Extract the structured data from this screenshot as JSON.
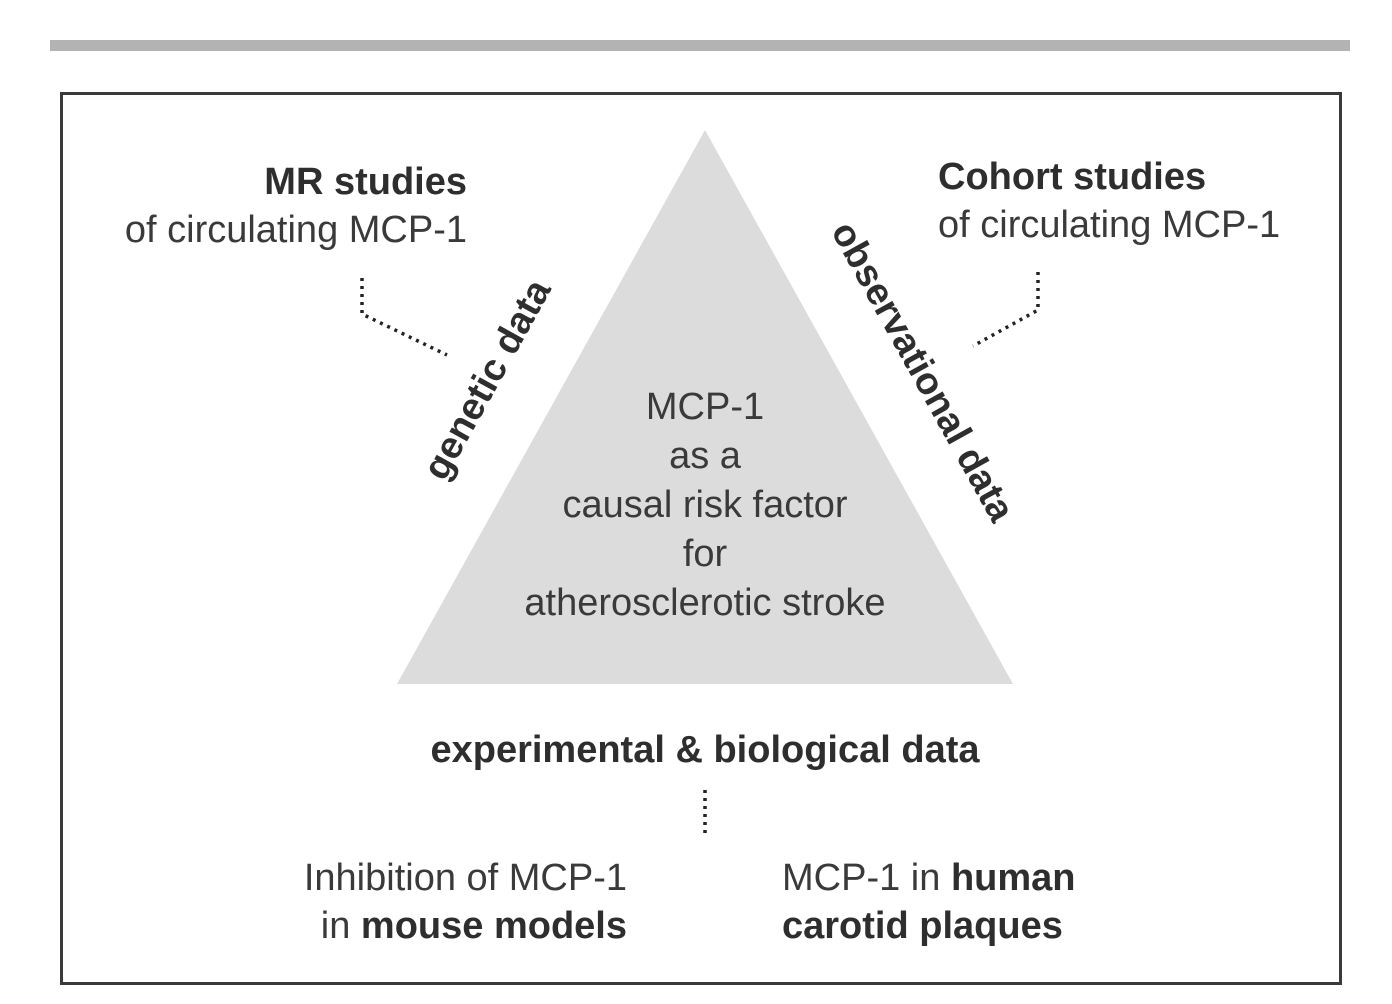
{
  "mr": {
    "title": "MR studies",
    "subtitle": "of circulating MCP-1"
  },
  "cohort": {
    "title": "Cohort studies",
    "subtitle": "of circulating MCP-1"
  },
  "sides": {
    "left": "genetic data",
    "right": "observational data",
    "bottom": "experimental & biological data"
  },
  "center": {
    "lines": [
      "MCP-1",
      "as a",
      "causal risk factor",
      "for",
      "atherosclerotic stroke"
    ]
  },
  "inhibition": {
    "line1": "Inhibition of MCP-1",
    "line2_prefix": "in",
    "line2_bold": "mouse models"
  },
  "plaques": {
    "line1_prefix": "MCP-1 in",
    "line1_bold": "human",
    "line2_bold": "carotid plaques"
  },
  "colors": {
    "triangle": "#dcdcdc",
    "frame": "#3a3a3a",
    "top_rule": "#b3b3b3",
    "text": "#3a3a3a"
  }
}
